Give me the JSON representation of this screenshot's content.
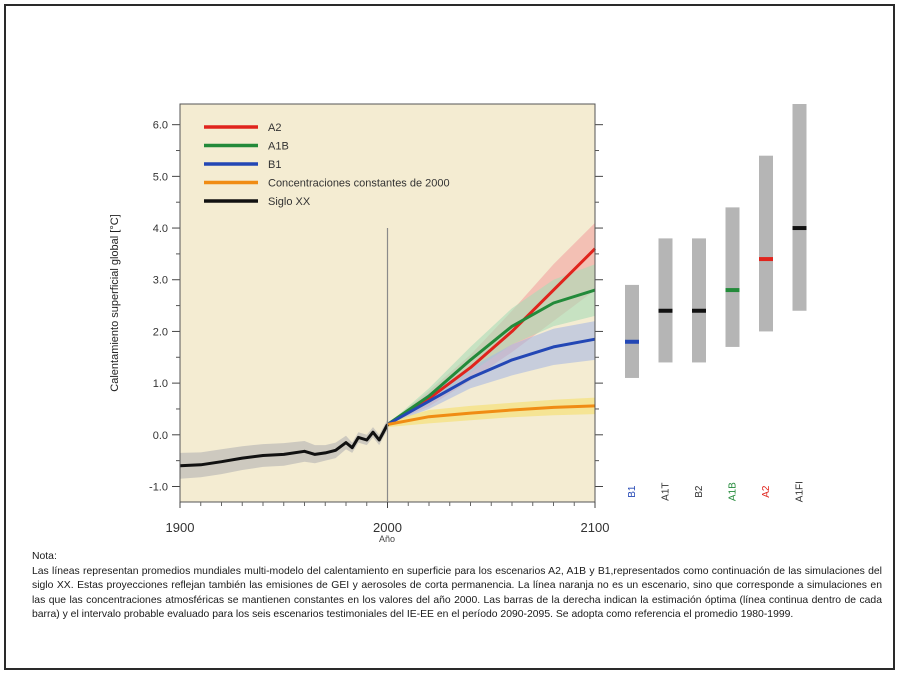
{
  "chart_data": [
    {
      "type": "line",
      "xlabel": "Año",
      "ylabel": "Calentamiento superficial global [°C]",
      "xlim": [
        1900,
        2100
      ],
      "ylim": [
        -1.3,
        6.4
      ],
      "x_ticks": [
        1900,
        2000,
        2100
      ],
      "x_tick_labels": [
        "1900",
        "2000",
        "2100"
      ],
      "y_ticks": [
        -1.0,
        0.0,
        1.0,
        2.0,
        3.0,
        4.0,
        5.0,
        6.0
      ],
      "y_tick_labels": [
        "-1.0",
        "0.0",
        "1.0",
        "2.0",
        "3.0",
        "4.0",
        "5.0",
        "6.0"
      ],
      "vline_x": 2000,
      "grid": false,
      "legend_position": "top-left",
      "background_color": "#f4ecd2",
      "series": [
        {
          "name": "A2",
          "color": "#e0241d",
          "band_color": "#f2a3a0",
          "x": [
            2000,
            2020,
            2040,
            2060,
            2080,
            2100
          ],
          "values": [
            0.2,
            0.7,
            1.3,
            2.0,
            2.8,
            3.6
          ],
          "lower": [
            0.2,
            0.55,
            1.05,
            1.6,
            2.2,
            2.8
          ],
          "upper": [
            0.2,
            0.85,
            1.55,
            2.4,
            3.3,
            4.1
          ]
        },
        {
          "name": "A1B",
          "color": "#238a3a",
          "band_color": "#a8dcb8",
          "x": [
            2000,
            2020,
            2040,
            2060,
            2080,
            2100
          ],
          "values": [
            0.2,
            0.75,
            1.45,
            2.1,
            2.55,
            2.8
          ],
          "lower": [
            0.2,
            0.6,
            1.2,
            1.75,
            2.1,
            2.3
          ],
          "upper": [
            0.2,
            0.9,
            1.7,
            2.45,
            3.0,
            3.3
          ]
        },
        {
          "name": "B1",
          "color": "#2347b5",
          "band_color": "#a9b9e2",
          "x": [
            2000,
            2020,
            2040,
            2060,
            2080,
            2100
          ],
          "values": [
            0.2,
            0.65,
            1.1,
            1.45,
            1.7,
            1.85
          ],
          "lower": [
            0.2,
            0.5,
            0.9,
            1.15,
            1.35,
            1.45
          ],
          "upper": [
            0.2,
            0.8,
            1.3,
            1.75,
            2.05,
            2.2
          ]
        },
        {
          "name": "Concentraciones constantes de 2000",
          "color": "#f08c14",
          "band_color": "#f5e06a",
          "x": [
            2000,
            2020,
            2040,
            2060,
            2080,
            2100
          ],
          "values": [
            0.2,
            0.35,
            0.42,
            0.48,
            0.53,
            0.56
          ],
          "lower": [
            0.15,
            0.22,
            0.28,
            0.34,
            0.38,
            0.4
          ],
          "upper": [
            0.25,
            0.48,
            0.56,
            0.62,
            0.68,
            0.72
          ]
        },
        {
          "name": "Siglo XX",
          "color": "#111111",
          "band_color": "#b3b3b3",
          "x": [
            1900,
            1910,
            1920,
            1930,
            1940,
            1950,
            1960,
            1965,
            1970,
            1975,
            1980,
            1983,
            1986,
            1990,
            1993,
            1996,
            2000
          ],
          "values": [
            -0.6,
            -0.58,
            -0.52,
            -0.45,
            -0.4,
            -0.38,
            -0.32,
            -0.38,
            -0.35,
            -0.3,
            -0.15,
            -0.25,
            -0.05,
            -0.1,
            0.05,
            -0.1,
            0.2
          ],
          "lower": [
            -0.85,
            -0.82,
            -0.76,
            -0.68,
            -0.62,
            -0.6,
            -0.52,
            -0.55,
            -0.5,
            -0.45,
            -0.28,
            -0.35,
            -0.15,
            -0.2,
            -0.05,
            -0.2,
            0.1
          ],
          "upper": [
            -0.35,
            -0.34,
            -0.28,
            -0.22,
            -0.18,
            -0.16,
            -0.12,
            -0.2,
            -0.2,
            -0.15,
            -0.02,
            -0.15,
            0.05,
            0.0,
            0.15,
            0.0,
            0.3
          ]
        }
      ]
    },
    {
      "type": "bar",
      "description_type": "range bars with best estimate",
      "categories": [
        "B1",
        "A1T",
        "B2",
        "A1B",
        "A2",
        "A1FI"
      ],
      "label_colors": [
        "#2347b5",
        "#333333",
        "#333333",
        "#238a3a",
        "#e0241d",
        "#333333"
      ],
      "low": [
        1.1,
        1.4,
        1.4,
        1.7,
        2.0,
        2.4
      ],
      "high": [
        2.9,
        3.8,
        3.8,
        4.4,
        5.4,
        6.4
      ],
      "best": [
        1.8,
        2.4,
        2.4,
        2.8,
        3.4,
        4.0
      ],
      "best_colors": [
        "#2347b5",
        "#111111",
        "#111111",
        "#238a3a",
        "#e0241d",
        "#111111"
      ],
      "bar_color": "#b5b5b5"
    }
  ],
  "note": {
    "title": "Nota:",
    "text": "Las líneas representan promedios mundiales multi-modelo del calentamiento en superficie para los escenarios A2, A1B y B1,representados como continuación de las simulaciones del siglo XX. Estas proyecciones reflejan también las emisiones de GEI y aerosoles de corta permanencia. La línea naranja no es un escenario, sino que corresponde a simulaciones en las que las concentraciones atmosféricas se mantienen constantes en los valores del año 2000. Las barras de la derecha indican la estimación óptima (línea continua dentro de cada barra) y el intervalo probable evaluado para los seis escenarios testimoniales del IE-EE en el período 2090-2095. Se adopta como referencia el promedio 1980-1999."
  }
}
